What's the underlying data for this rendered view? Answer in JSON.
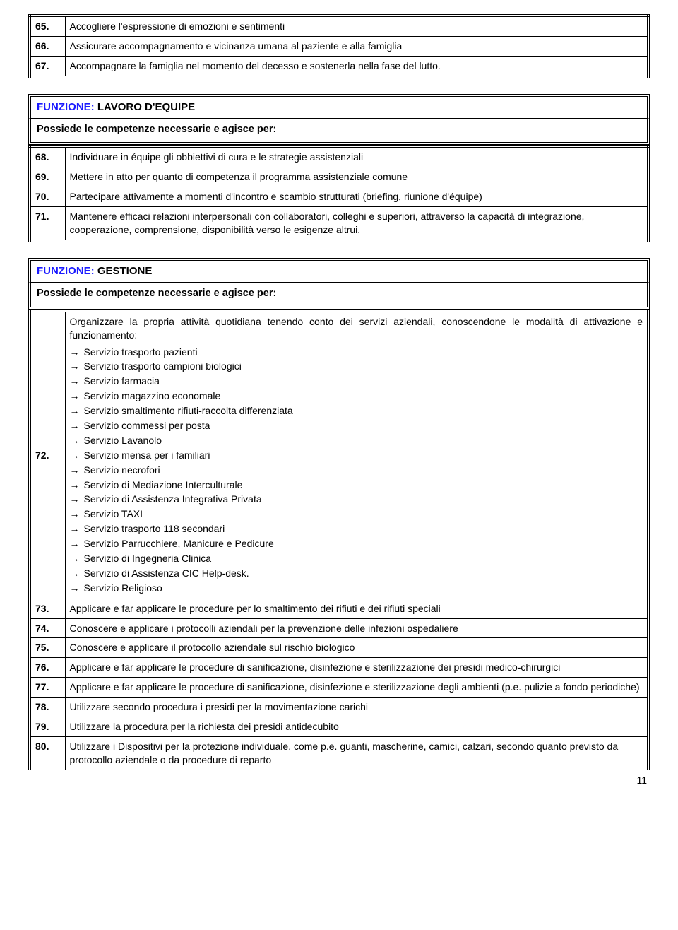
{
  "table1": {
    "rows": [
      {
        "n": "65.",
        "t": "Accogliere l'espressione di emozioni e sentimenti"
      },
      {
        "n": "66.",
        "t": "Assicurare accompagnamento e vicinanza umana al paziente e alla famiglia"
      },
      {
        "n": "67.",
        "t": "Accompagnare la famiglia nel momento del decesso e sostenerla nella fase del lutto."
      }
    ]
  },
  "section2": {
    "funzione": "FUNZIONE:",
    "title": " LAVORO D'EQUIPE",
    "sub": "Possiede le competenze necessarie e agisce per:",
    "rows": [
      {
        "n": "68.",
        "t": "Individuare in équipe gli obbiettivi di cura e le strategie assistenziali"
      },
      {
        "n": "69.",
        "t": "Mettere in atto per quanto di competenza il programma assistenziale comune"
      },
      {
        "n": "70.",
        "t": "Partecipare attivamente a momenti d'incontro e scambio strutturati (briefing, riunione d'équipe)"
      },
      {
        "n": "71.",
        "t": "Mantenere efficaci relazioni interpersonali con collaboratori, colleghi e superiori, attraverso la capacità di integrazione, cooperazione, comprensione, disponibilità verso le esigenze altrui."
      }
    ]
  },
  "section3": {
    "funzione": "FUNZIONE:",
    "title": " GESTIONE",
    "sub": "Possiede le competenze necessarie e agisce per:",
    "row72": {
      "n": "72.",
      "intro": "Organizzare la propria attività quotidiana tenendo conto dei servizi aziendali, conoscendone le modalità di attivazione e funzionamento:",
      "items": [
        "Servizio trasporto pazienti",
        "Servizio trasporto campioni biologici",
        "Servizio farmacia",
        "Servizio magazzino economale",
        "Servizio smaltimento rifiuti-raccolta differenziata",
        "Servizio commessi per posta",
        "Servizio Lavanolo",
        "Servizio mensa per i familiari",
        "Servizio necrofori",
        "Servizio di Mediazione Interculturale",
        "Servizio di Assistenza Integrativa Privata",
        "Servizio TAXI",
        "Servizio trasporto 118 secondari",
        "Servizio Parrucchiere, Manicure e Pedicure",
        "Servizio di Ingegneria Clinica",
        "Servizio di Assistenza CIC Help-desk.",
        "Servizio Religioso"
      ]
    },
    "rows_after": [
      {
        "n": "73.",
        "t": "Applicare e far applicare le procedure per lo smaltimento dei rifiuti e dei rifiuti speciali"
      },
      {
        "n": "74.",
        "t": "Conoscere e applicare i protocolli aziendali per la prevenzione delle infezioni ospedaliere"
      },
      {
        "n": "75.",
        "t": "Conoscere e applicare il protocollo aziendale sul rischio biologico"
      },
      {
        "n": "76.",
        "t": "Applicare e far applicare le procedure di sanificazione, disinfezione e sterilizzazione dei presidi medico-chirurgici"
      },
      {
        "n": "77.",
        "t": "Applicare e far applicare le procedure di sanificazione, disinfezione e sterilizzazione degli ambienti (p.e. pulizie a fondo periodiche)"
      },
      {
        "n": "78.",
        "t": "Utilizzare secondo procedura i presidi per la movimentazione carichi"
      },
      {
        "n": "79.",
        "t": "Utilizzare la procedura per la richiesta dei presidi antidecubito"
      },
      {
        "n": "80.",
        "t": "Utilizzare i Dispositivi per la protezione individuale, come p.e. guanti, mascherine, camici, calzari, secondo quanto previsto da protocollo aziendale o da procedure di reparto"
      }
    ]
  },
  "page_number": "11"
}
